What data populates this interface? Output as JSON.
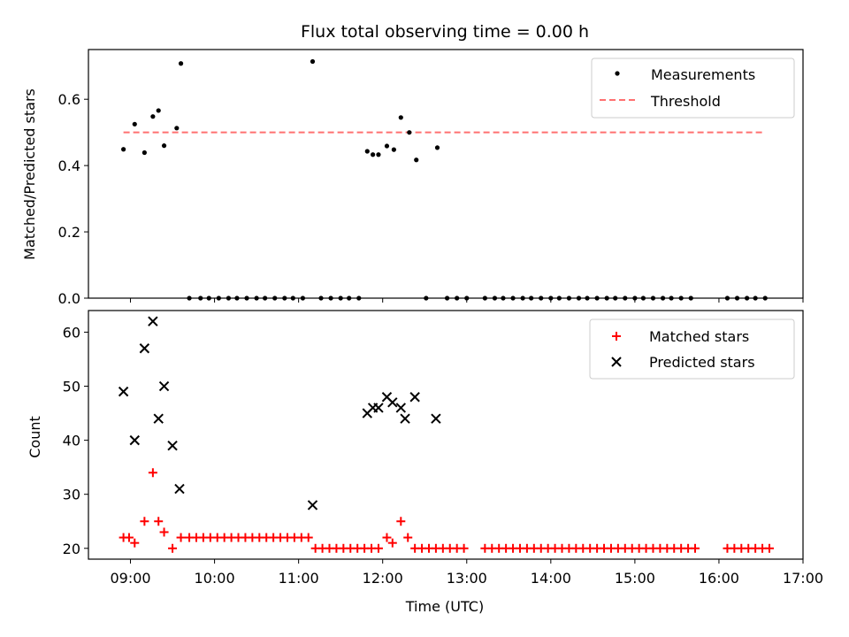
{
  "chart_data": [
    {
      "type": "scatter",
      "title": "Flux total observing time = 0.00 h",
      "xlabel": "",
      "ylabel": "Matched/Predicted stars",
      "ylim": [
        0,
        0.75
      ],
      "yticks": [
        "0.0",
        "0.2",
        "0.4",
        "0.6"
      ],
      "legend_position": "top-right",
      "series": [
        {
          "name": "Measurements",
          "marker": "dot",
          "color": "#000000",
          "points": [
            [
              "08:55",
              0.449
            ],
            [
              "09:03",
              0.525
            ],
            [
              "09:10",
              0.439
            ],
            [
              "09:16",
              0.548
            ],
            [
              "09:20",
              0.566
            ],
            [
              "09:24",
              0.46
            ],
            [
              "09:33",
              0.513
            ],
            [
              "09:36",
              0.708
            ],
            [
              "09:42",
              0.0
            ],
            [
              "09:50",
              0.0
            ],
            [
              "09:56",
              0.0
            ],
            [
              "10:03",
              0.0
            ],
            [
              "10:10",
              0.0
            ],
            [
              "10:16",
              0.0
            ],
            [
              "10:23",
              0.0
            ],
            [
              "10:30",
              0.0
            ],
            [
              "10:36",
              0.0
            ],
            [
              "10:43",
              0.0
            ],
            [
              "10:50",
              0.0
            ],
            [
              "10:56",
              0.0
            ],
            [
              "11:03",
              0.0
            ],
            [
              "11:10",
              0.714
            ],
            [
              "11:16",
              0.0
            ],
            [
              "11:23",
              0.0
            ],
            [
              "11:30",
              0.0
            ],
            [
              "11:36",
              0.0
            ],
            [
              "11:43",
              0.0
            ],
            [
              "11:49",
              0.443
            ],
            [
              "11:53",
              0.433
            ],
            [
              "11:57",
              0.433
            ],
            [
              "12:03",
              0.459
            ],
            [
              "12:08",
              0.448
            ],
            [
              "12:13",
              0.545
            ],
            [
              "12:19",
              0.5
            ],
            [
              "12:24",
              0.417
            ],
            [
              "12:31",
              0.0
            ],
            [
              "12:39",
              0.454
            ],
            [
              "12:46",
              0.0
            ],
            [
              "12:53",
              0.0
            ],
            [
              "13:00",
              0.0
            ],
            [
              "13:13",
              0.0
            ],
            [
              "13:20",
              0.0
            ],
            [
              "13:26",
              0.0
            ],
            [
              "13:33",
              0.0
            ],
            [
              "13:40",
              0.0
            ],
            [
              "13:46",
              0.0
            ],
            [
              "13:53",
              0.0
            ],
            [
              "14:00",
              0.0
            ],
            [
              "14:06",
              0.0
            ],
            [
              "14:13",
              0.0
            ],
            [
              "14:20",
              0.0
            ],
            [
              "14:26",
              0.0
            ],
            [
              "14:33",
              0.0
            ],
            [
              "14:40",
              0.0
            ],
            [
              "14:46",
              0.0
            ],
            [
              "14:53",
              0.0
            ],
            [
              "15:00",
              0.0
            ],
            [
              "15:06",
              0.0
            ],
            [
              "15:13",
              0.0
            ],
            [
              "15:20",
              0.0
            ],
            [
              "15:26",
              0.0
            ],
            [
              "15:33",
              0.0
            ],
            [
              "15:40",
              0.0
            ],
            [
              "16:06",
              0.0
            ],
            [
              "16:13",
              0.0
            ],
            [
              "16:20",
              0.0
            ],
            [
              "16:26",
              0.0
            ],
            [
              "16:33",
              0.0
            ]
          ]
        },
        {
          "name": "Threshold",
          "style": "dashed-line",
          "color": "#ff7070",
          "x": [
            "08:55",
            "16:33"
          ],
          "values": [
            0.5,
            0.5
          ]
        }
      ]
    },
    {
      "type": "scatter",
      "title": "",
      "xlabel": "Time (UTC)",
      "ylabel": "Count",
      "ylim": [
        18,
        64
      ],
      "yticks": [
        "20",
        "30",
        "40",
        "50",
        "60"
      ],
      "xlim": [
        "08:30",
        "17:00"
      ],
      "xticks": [
        "09:00",
        "10:00",
        "11:00",
        "12:00",
        "13:00",
        "14:00",
        "15:00",
        "16:00",
        "17:00"
      ],
      "legend_position": "top-right",
      "series": [
        {
          "name": "Matched stars",
          "marker": "plus",
          "color": "#ff0000",
          "points": [
            [
              "08:55",
              22
            ],
            [
              "08:59",
              22
            ],
            [
              "09:03",
              21
            ],
            [
              "09:10",
              25
            ],
            [
              "09:16",
              34
            ],
            [
              "09:20",
              25
            ],
            [
              "09:24",
              23
            ],
            [
              "09:30",
              20
            ],
            [
              "09:36",
              22
            ],
            [
              "09:42",
              22
            ],
            [
              "09:47",
              22
            ],
            [
              "09:52",
              22
            ],
            [
              "09:57",
              22
            ],
            [
              "10:02",
              22
            ],
            [
              "10:07",
              22
            ],
            [
              "10:12",
              22
            ],
            [
              "10:17",
              22
            ],
            [
              "10:22",
              22
            ],
            [
              "10:27",
              22
            ],
            [
              "10:32",
              22
            ],
            [
              "10:37",
              22
            ],
            [
              "10:42",
              22
            ],
            [
              "10:47",
              22
            ],
            [
              "10:52",
              22
            ],
            [
              "10:57",
              22
            ],
            [
              "11:02",
              22
            ],
            [
              "11:07",
              22
            ],
            [
              "11:12",
              20
            ],
            [
              "11:17",
              20
            ],
            [
              "11:22",
              20
            ],
            [
              "11:27",
              20
            ],
            [
              "11:32",
              20
            ],
            [
              "11:37",
              20
            ],
            [
              "11:42",
              20
            ],
            [
              "11:47",
              20
            ],
            [
              "11:52",
              20
            ],
            [
              "11:57",
              20
            ],
            [
              "12:03",
              22
            ],
            [
              "12:07",
              21
            ],
            [
              "12:13",
              25
            ],
            [
              "12:18",
              22
            ],
            [
              "12:23",
              20
            ],
            [
              "12:28",
              20
            ],
            [
              "12:33",
              20
            ],
            [
              "12:38",
              20
            ],
            [
              "12:43",
              20
            ],
            [
              "12:48",
              20
            ],
            [
              "12:53",
              20
            ],
            [
              "12:58",
              20
            ],
            [
              "13:13",
              20
            ],
            [
              "13:18",
              20
            ],
            [
              "13:23",
              20
            ],
            [
              "13:28",
              20
            ],
            [
              "13:33",
              20
            ],
            [
              "13:38",
              20
            ],
            [
              "13:43",
              20
            ],
            [
              "13:48",
              20
            ],
            [
              "13:53",
              20
            ],
            [
              "13:58",
              20
            ],
            [
              "14:03",
              20
            ],
            [
              "14:08",
              20
            ],
            [
              "14:13",
              20
            ],
            [
              "14:18",
              20
            ],
            [
              "14:23",
              20
            ],
            [
              "14:28",
              20
            ],
            [
              "14:33",
              20
            ],
            [
              "14:38",
              20
            ],
            [
              "14:43",
              20
            ],
            [
              "14:48",
              20
            ],
            [
              "14:53",
              20
            ],
            [
              "14:58",
              20
            ],
            [
              "15:03",
              20
            ],
            [
              "15:08",
              20
            ],
            [
              "15:13",
              20
            ],
            [
              "15:18",
              20
            ],
            [
              "15:23",
              20
            ],
            [
              "15:28",
              20
            ],
            [
              "15:33",
              20
            ],
            [
              "15:38",
              20
            ],
            [
              "15:43",
              20
            ],
            [
              "16:06",
              20
            ],
            [
              "16:11",
              20
            ],
            [
              "16:16",
              20
            ],
            [
              "16:21",
              20
            ],
            [
              "16:26",
              20
            ],
            [
              "16:31",
              20
            ],
            [
              "16:36",
              20
            ]
          ]
        },
        {
          "name": "Predicted stars",
          "marker": "x",
          "color": "#000000",
          "points": [
            [
              "08:55",
              49
            ],
            [
              "09:03",
              40
            ],
            [
              "09:10",
              57
            ],
            [
              "09:16",
              62
            ],
            [
              "09:20",
              44
            ],
            [
              "09:24",
              50
            ],
            [
              "09:30",
              39
            ],
            [
              "09:35",
              31
            ],
            [
              "11:10",
              28
            ],
            [
              "11:49",
              45
            ],
            [
              "11:53",
              46
            ],
            [
              "11:57",
              46
            ],
            [
              "12:03",
              48
            ],
            [
              "12:07",
              47
            ],
            [
              "12:13",
              46
            ],
            [
              "12:16",
              44
            ],
            [
              "12:23",
              48
            ],
            [
              "12:38",
              44
            ]
          ]
        }
      ]
    }
  ]
}
